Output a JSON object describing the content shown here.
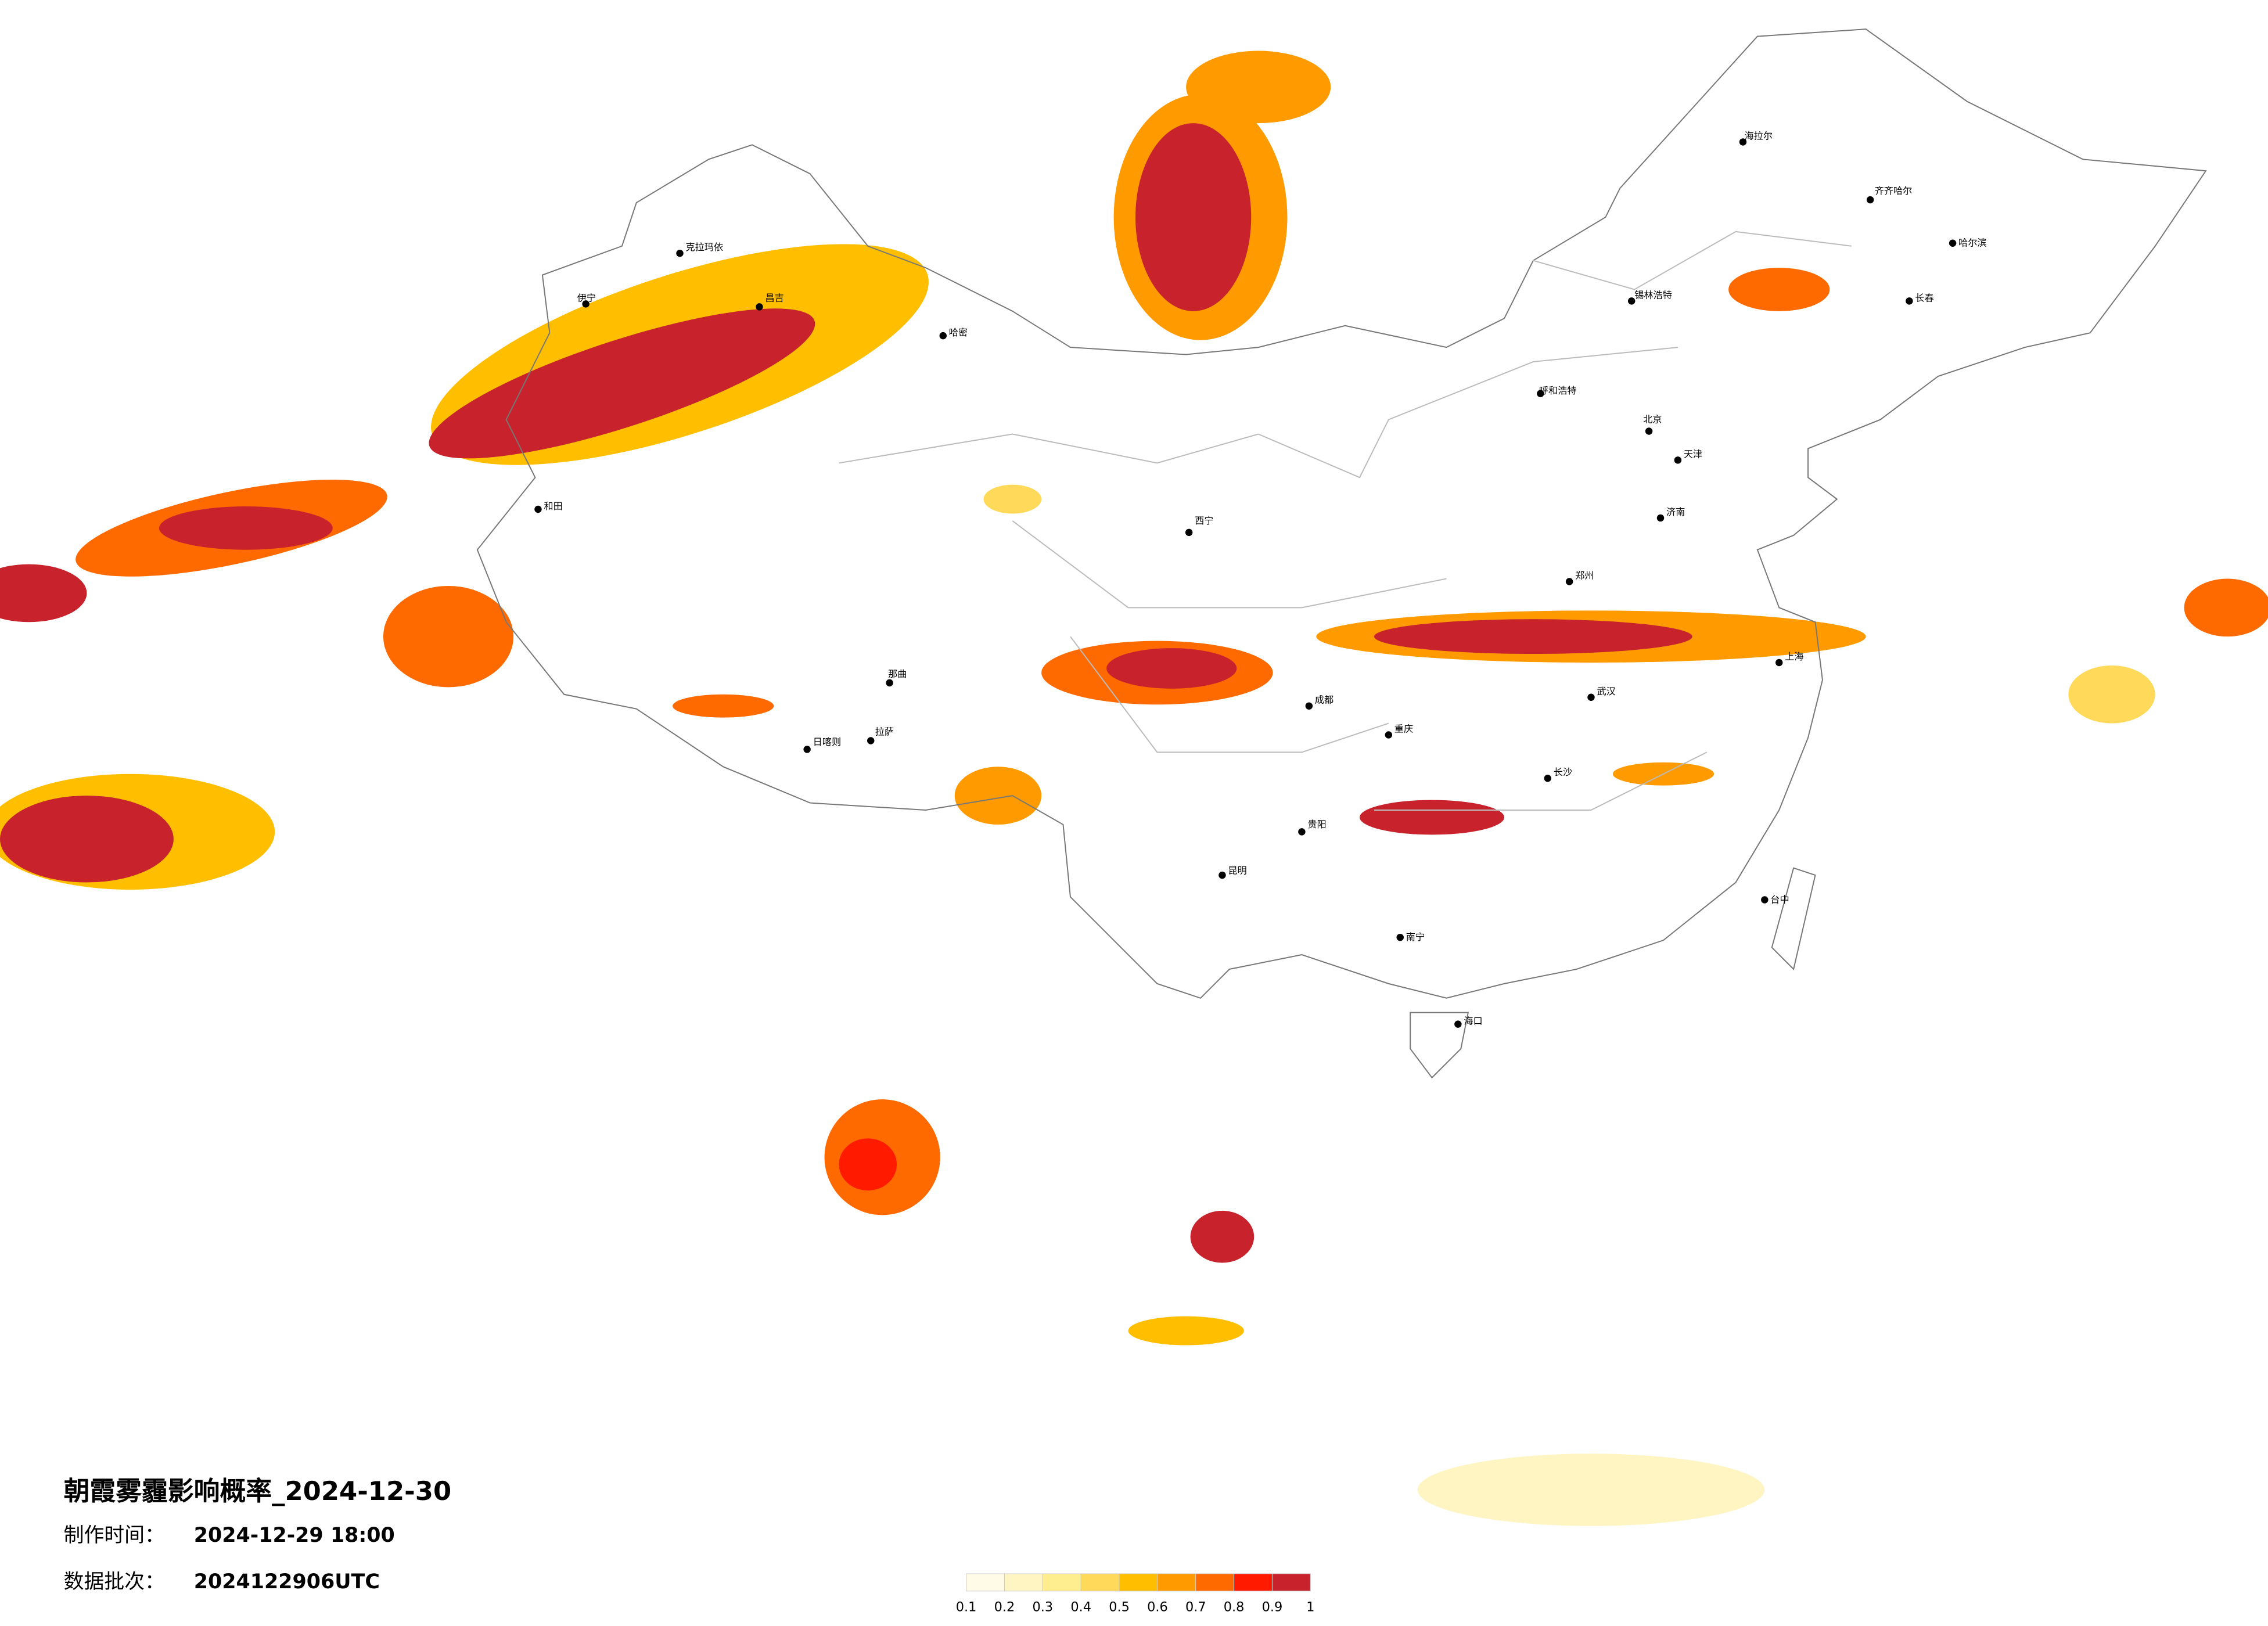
{
  "header": {
    "title": "朝霞雾霾影响概率_2024-12-30",
    "made_label": "制作时间：",
    "made_time": "2024-12-29 18:00",
    "batch_label": "数据批次：",
    "batch": "2024122906UTC"
  },
  "legend": {
    "colors": [
      "#fffbe6",
      "#fff5c2",
      "#ffee8f",
      "#ffd95a",
      "#ffbf00",
      "#ff9a00",
      "#ff6a00",
      "#ff1a00",
      "#c8232c"
    ],
    "ticks": [
      0.1,
      0.2,
      0.3,
      0.4,
      0.5,
      0.6,
      0.7,
      0.8,
      0.9,
      1
    ]
  },
  "cities": [
    "伊宁",
    "克拉玛依",
    "昌吉",
    "哈密",
    "和田",
    "日喀则",
    "拉萨",
    "那曲",
    "西宁",
    "成都",
    "重庆",
    "贵阳",
    "昆明",
    "南宁",
    "海口",
    "北京",
    "天津",
    "上海",
    "长沙",
    "呼和浩特",
    "锡林浩特",
    "海拉尔",
    "齐齐哈尔",
    "哈尔滨",
    "长春",
    "台中",
    "武汉",
    "济南",
    "郑州"
  ]
}
